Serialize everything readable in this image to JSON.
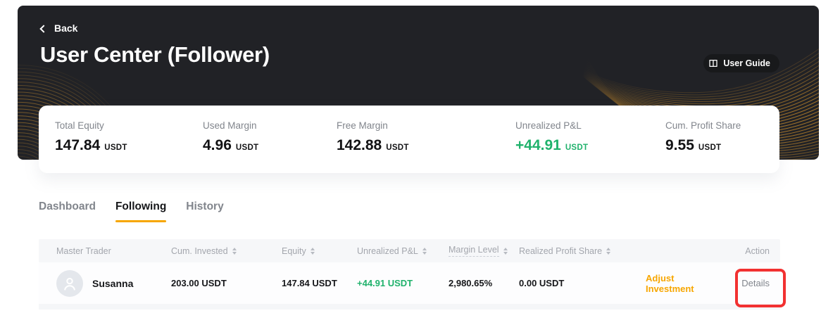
{
  "header": {
    "back_label": "Back",
    "title": "User Center (Follower)",
    "user_guide_label": "User Guide"
  },
  "stats": {
    "items": [
      {
        "label": "Total Equity",
        "value": "147.84",
        "unit": "USDT",
        "tone": "default"
      },
      {
        "label": "Used Margin",
        "value": "4.96",
        "unit": "USDT",
        "tone": "default"
      },
      {
        "label": "Free Margin",
        "value": "142.88",
        "unit": "USDT",
        "tone": "default"
      },
      {
        "label": "Unrealized P&L",
        "value": "+44.91",
        "unit": "USDT",
        "tone": "green"
      },
      {
        "label": "Cum. Profit Share",
        "value": "9.55",
        "unit": "USDT",
        "tone": "default"
      }
    ]
  },
  "tabs": {
    "items": [
      {
        "label": "Dashboard",
        "active": false
      },
      {
        "label": "Following",
        "active": true
      },
      {
        "label": "History",
        "active": false
      }
    ]
  },
  "table": {
    "columns": [
      {
        "label": "Master Trader",
        "sortable": false
      },
      {
        "label": "Cum. Invested",
        "sortable": true
      },
      {
        "label": "Equity",
        "sortable": true
      },
      {
        "label": "Unrealized P&L",
        "sortable": true
      },
      {
        "label": "Margin Level",
        "sortable": true,
        "tooltip_underline": true
      },
      {
        "label": "Realized Profit Share",
        "sortable": true
      },
      {
        "label": "Action",
        "sortable": false
      }
    ],
    "rows": [
      {
        "master_trader": "Susanna",
        "cum_invested": "203.00 USDT",
        "equity": "147.84 USDT",
        "unrealized_pnl": "+44.91 USDT",
        "margin_level": "2,980.65%",
        "realized_profit_share": "0.00 USDT",
        "action_adjust": "Adjust Investment",
        "action_details": "Details"
      }
    ]
  },
  "icons": {
    "back": "chevron-left-icon",
    "user_guide": "open-book-icon",
    "sort": "sort-arrows-icon",
    "avatar": "person-silhouette-icon"
  },
  "colors": {
    "accent_orange": "#F7A600",
    "positive_green": "#20B26C",
    "hero_background": "#212226",
    "annotation_red": "#F23131"
  }
}
